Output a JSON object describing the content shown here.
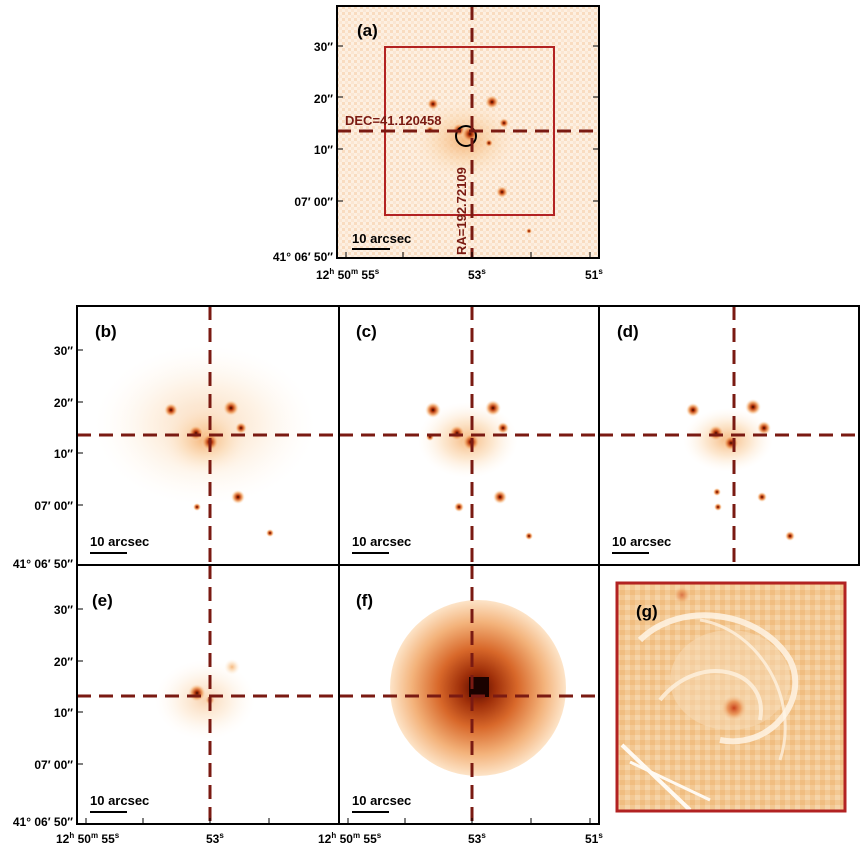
{
  "figure": {
    "panels": [
      {
        "label": "(a)",
        "scale_label": "10 arcsec"
      },
      {
        "label": "(b)",
        "scale_label": "10 arcsec"
      },
      {
        "label": "(c)",
        "scale_label": "10 arcsec"
      },
      {
        "label": "(d)",
        "scale_label": "10 arcsec"
      },
      {
        "label": "(e)",
        "scale_label": "10 arcsec"
      },
      {
        "label": "(f)",
        "scale_label": "10 arcsec"
      },
      {
        "label": "(g)"
      }
    ],
    "dec_marker": "DEC=41.120458",
    "ra_marker": "RA=192.72109",
    "dec_ticks": [
      "30″",
      "20″",
      "10″",
      "07′ 00″",
      "41° 06′ 50″"
    ],
    "ra_ticks": [
      {
        "h": "12",
        "m": "50",
        "s": "55"
      },
      {
        "s": "53"
      },
      {
        "s": "51"
      }
    ],
    "ra_units": {
      "h": "h",
      "m": "m",
      "s": "s"
    },
    "colors": {
      "frame": "#000000",
      "crosshair": "#7a1a12",
      "box": "#b22222",
      "blob": "#e8732a",
      "core": "#7a1a00"
    }
  }
}
